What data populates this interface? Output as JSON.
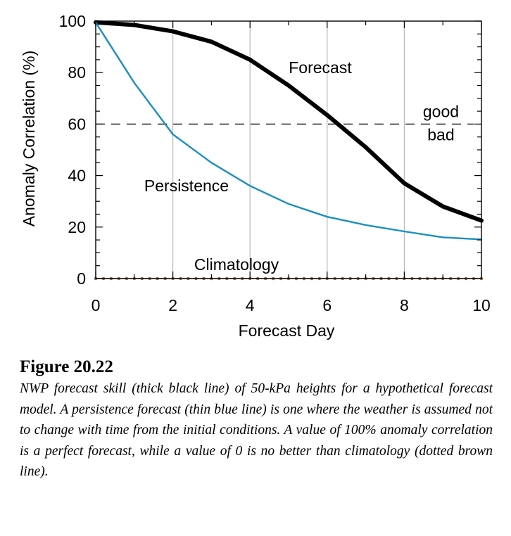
{
  "chart_data": {
    "type": "line",
    "title": "",
    "xlabel": "Forecast Day",
    "ylabel": "Anomaly Correlation (%)",
    "xlim": [
      0,
      10
    ],
    "ylim": [
      0,
      100
    ],
    "x_ticks": [
      "0",
      "2",
      "4",
      "6",
      "8",
      "10"
    ],
    "y_ticks": [
      "0",
      "20",
      "40",
      "60",
      "80",
      "100"
    ],
    "x_grid": true,
    "y_grid": false,
    "threshold": {
      "y": 60,
      "style": "dashed",
      "label_above": "good",
      "label_below": "bad",
      "label_above_color": "#3aa13a",
      "label_below_color": "#d03a32"
    },
    "series": [
      {
        "name": "Forecast",
        "color": "#000000",
        "style": "thick",
        "x": [
          0,
          1,
          2,
          3,
          4,
          5,
          6,
          7,
          8,
          9,
          10
        ],
        "y": [
          99.5,
          98.5,
          96,
          92,
          85,
          75,
          63.5,
          51,
          37,
          28,
          22.5
        ]
      },
      {
        "name": "Persistence",
        "color": "#1a8fc0",
        "style": "thin",
        "x": [
          0,
          1,
          2,
          3,
          4,
          5,
          6,
          7,
          8,
          9,
          10
        ],
        "y": [
          99.5,
          76,
          56,
          45,
          36,
          29,
          24,
          20.8,
          18.3,
          16,
          15.2
        ]
      },
      {
        "name": "Climatology",
        "color": "#8c7358",
        "style": "dotted",
        "x": [
          0,
          10
        ],
        "y": [
          0,
          0
        ]
      }
    ]
  },
  "caption": {
    "title": "Figure 20.22",
    "text": "NWP forecast skill (thick black line) of 50-kPa heights for a hypothetical forecast model. A persistence forecast (thin blue line) is one where the weather is assumed not to change with time from the initial conditions. A value of 100% anomaly correlation is a perfect forecast, while a value of 0 is no better than climatology (dotted brown line)."
  }
}
